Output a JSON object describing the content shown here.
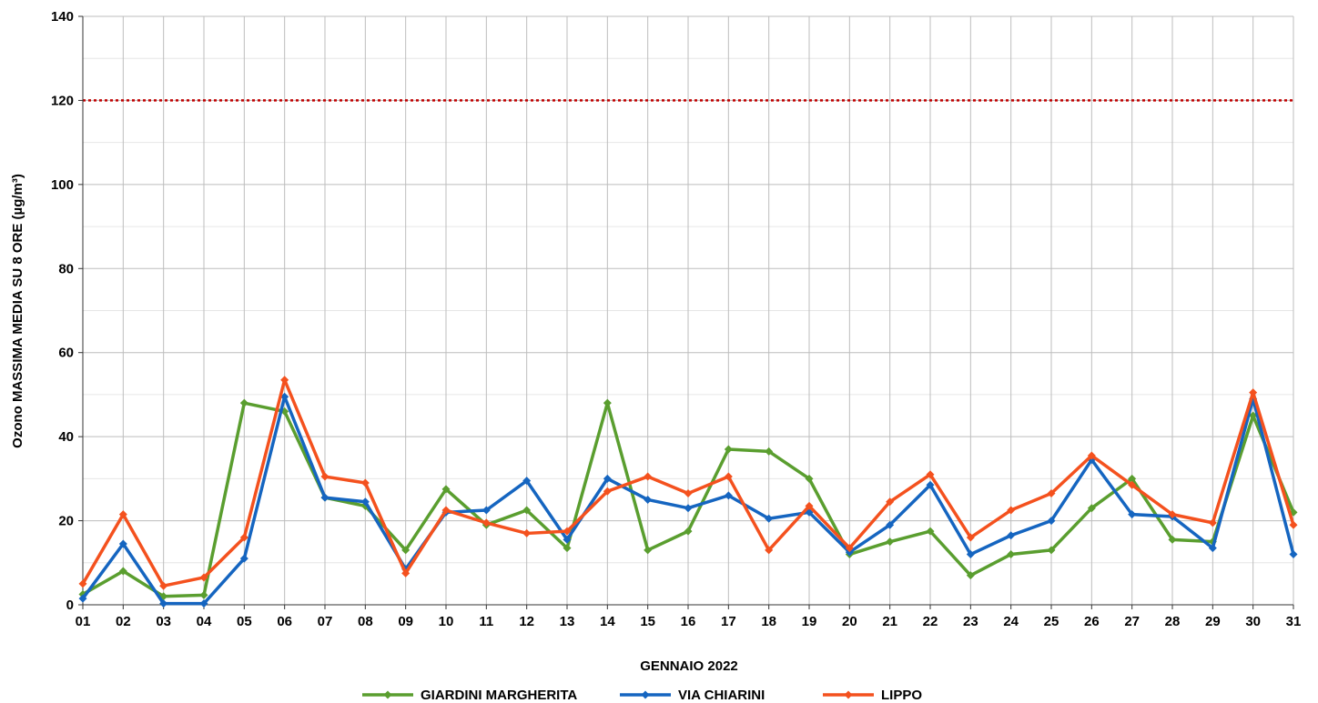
{
  "chart_data": {
    "type": "line",
    "title": "",
    "xlabel": "GENNAIO 2022",
    "ylabel": "Ozono MASSIMA MEDIA SU 8 ORE (µg/m³)",
    "ylim": [
      0,
      140
    ],
    "yticks": [
      0,
      20,
      40,
      60,
      80,
      100,
      120,
      140
    ],
    "grid": true,
    "legend_position": "bottom",
    "categories": [
      "01",
      "02",
      "03",
      "04",
      "05",
      "06",
      "07",
      "08",
      "09",
      "10",
      "11",
      "12",
      "13",
      "14",
      "15",
      "16",
      "17",
      "18",
      "19",
      "20",
      "21",
      "22",
      "23",
      "24",
      "25",
      "26",
      "27",
      "28",
      "29",
      "30",
      "31"
    ],
    "threshold": {
      "value": 120,
      "color": "#c00000",
      "style": "dotted"
    },
    "series": [
      {
        "name": "GIARDINI MARGHERITA",
        "color": "#5a9e2f",
        "values": [
          2.5,
          8,
          2,
          2.3,
          48,
          46,
          25.5,
          23.5,
          13,
          27.5,
          19,
          22.5,
          13.5,
          48,
          13,
          17.5,
          37,
          36.5,
          30,
          12,
          15,
          17.5,
          7,
          12,
          13,
          23,
          30,
          15.5,
          15,
          45,
          22
        ]
      },
      {
        "name": "VIA CHIARINI",
        "color": "#1565c0",
        "values": [
          1.5,
          14.5,
          0.3,
          0.3,
          11,
          49.5,
          25.5,
          24.5,
          8.5,
          22,
          22.5,
          29.5,
          15.5,
          30,
          25,
          23,
          26,
          20.5,
          22,
          12.5,
          19,
          28.5,
          12,
          16.5,
          20,
          34.5,
          21.5,
          21,
          13.5,
          49,
          12
        ]
      },
      {
        "name": "LIPPO",
        "color": "#f4511e",
        "values": [
          5,
          21.5,
          4.5,
          6.5,
          16,
          53.5,
          30.5,
          29,
          7.5,
          22.5,
          19.5,
          17,
          17.5,
          27,
          30.5,
          26.5,
          30.5,
          13,
          23.5,
          13.5,
          24.5,
          31,
          16,
          22.5,
          26.5,
          35.5,
          28.5,
          21.5,
          19.5,
          50.5,
          19
        ]
      }
    ]
  }
}
